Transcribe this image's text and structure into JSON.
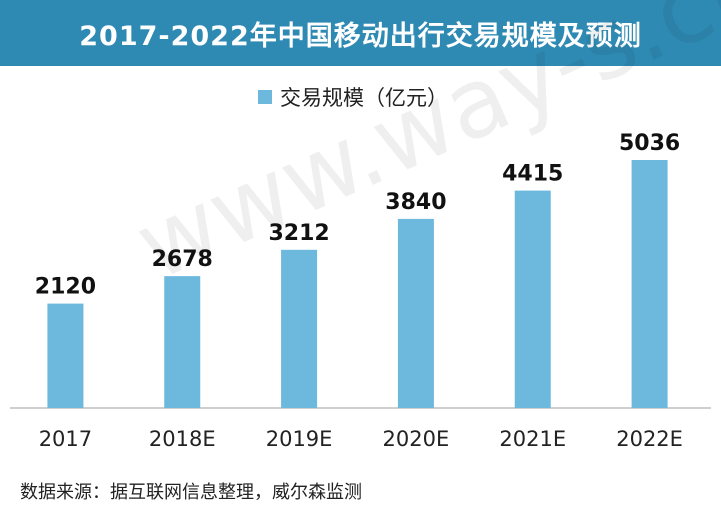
{
  "title": "2017-2022年中国移动出行交易规模及预测",
  "watermark": "www.way-s.cn",
  "source": "数据来源：据互联网信息整理，威尔森监测",
  "colors": {
    "title_bg": "#2e8ab3",
    "bar": "#6db9de",
    "axis": "#bfbfbf"
  },
  "chart_data": {
    "type": "bar",
    "categories": [
      "2017",
      "2018E",
      "2019E",
      "2020E",
      "2021E",
      "2022E"
    ],
    "series": [
      {
        "name": "交易规模（亿元）",
        "values": [
          2120,
          2678,
          3212,
          3840,
          4415,
          5036
        ]
      }
    ],
    "data_labels": [
      "2120",
      "2678",
      "3212",
      "3840",
      "4415",
      "5036"
    ],
    "ylim": [
      0,
      5036
    ],
    "legend_position": "top",
    "grid": false
  }
}
